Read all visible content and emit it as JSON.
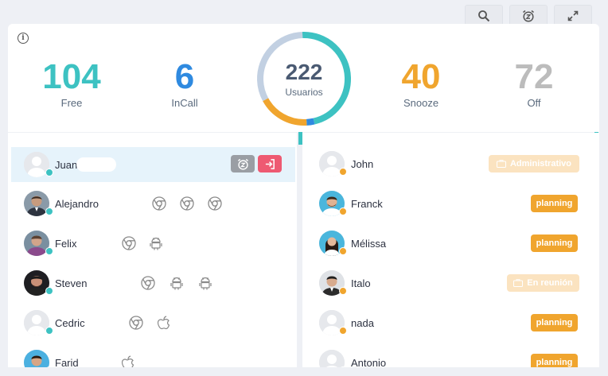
{
  "toolbar": {
    "search": "search-icon",
    "snooze": "snooze-clock-icon",
    "expand": "expand-icon"
  },
  "stats": {
    "free": {
      "value": "104",
      "label": "Free",
      "color": "#3dc2c2"
    },
    "incall": {
      "value": "6",
      "label": "InCall",
      "color": "#2f8ae0"
    },
    "snooze": {
      "value": "40",
      "label": "Snooze",
      "color": "#f0a52e"
    },
    "off": {
      "value": "72",
      "label": "Off",
      "color": "#bcbcbc"
    }
  },
  "total": {
    "value": "222",
    "label": "Usuarios"
  },
  "donut_segments": [
    {
      "label": "Free",
      "value": 104,
      "color": "#3dc2c2"
    },
    {
      "label": "InCall",
      "value": 6,
      "color": "#2f8ae0"
    },
    {
      "label": "Snooze",
      "value": 40,
      "color": "#f0a52e"
    },
    {
      "label": "Off",
      "value": 72,
      "color": "#c2d0e2"
    }
  ],
  "free_users": [
    {
      "name": "Juan",
      "devices": [],
      "selected": true
    },
    {
      "name": "Alejandro",
      "devices": [
        "chrome",
        "chrome",
        "chrome"
      ]
    },
    {
      "name": "Felix",
      "devices": [
        "chrome",
        "android"
      ]
    },
    {
      "name": "Steven",
      "devices": [
        "chrome",
        "android",
        "android"
      ]
    },
    {
      "name": "Cedric",
      "devices": [
        "chrome",
        "apple"
      ]
    },
    {
      "name": "Farid",
      "devices": [
        "apple"
      ]
    }
  ],
  "snooze_users": [
    {
      "name": "John",
      "badge": "Administrativo",
      "badge_style": "faded"
    },
    {
      "name": "Franck",
      "badge": "planning",
      "badge_style": "solid"
    },
    {
      "name": "Mélissa",
      "badge": "planning",
      "badge_style": "solid"
    },
    {
      "name": "Italo",
      "badge": "En reunión",
      "badge_style": "faded"
    },
    {
      "name": "nada",
      "badge": "planning",
      "badge_style": "solid"
    },
    {
      "name": "Antonio",
      "badge": "planning",
      "badge_style": "solid"
    }
  ]
}
